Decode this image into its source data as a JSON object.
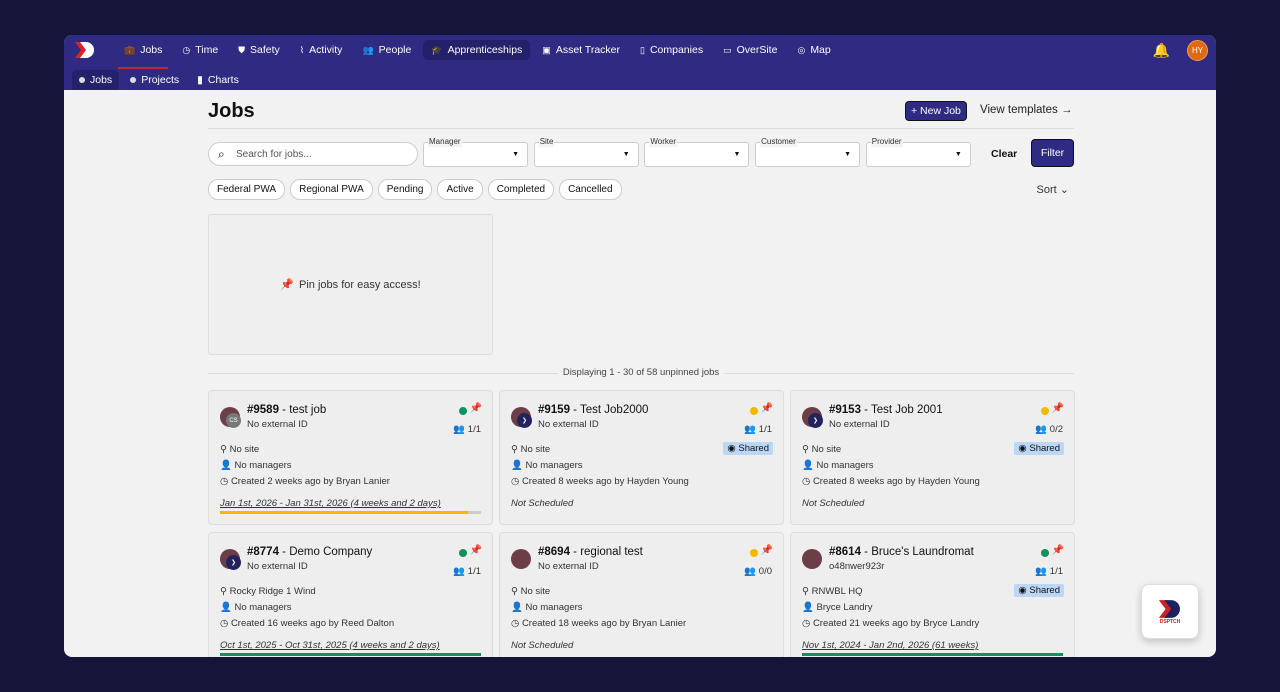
{
  "nav": {
    "items": [
      {
        "label": "Jobs",
        "icon": "briefcase-icon"
      },
      {
        "label": "Time",
        "icon": "clock-icon"
      },
      {
        "label": "Safety",
        "icon": "shield-icon"
      },
      {
        "label": "Activity",
        "icon": "pulse-icon"
      },
      {
        "label": "People",
        "icon": "people-icon"
      },
      {
        "label": "Apprenticeships",
        "icon": "graduation-cap-icon"
      },
      {
        "label": "Asset Tracker",
        "icon": "folder-icon"
      },
      {
        "label": "Companies",
        "icon": "building-icon"
      },
      {
        "label": "OverSite",
        "icon": "map-icon"
      },
      {
        "label": "Map",
        "icon": "globe-icon"
      }
    ],
    "sub": [
      {
        "label": "Jobs"
      },
      {
        "label": "Projects"
      },
      {
        "label": "Charts"
      }
    ],
    "avatar": "HY"
  },
  "page": {
    "title": "Jobs",
    "new_job": "+ New Job",
    "view_templates": "View templates →"
  },
  "filters": {
    "search_placeholder": "Search for jobs...",
    "selects": [
      "Manager",
      "Site",
      "Worker",
      "Customer",
      "Provider"
    ],
    "clear": "Clear",
    "filter": "Filter",
    "chips": [
      "Federal PWA",
      "Regional PWA",
      "Pending",
      "Active",
      "Completed",
      "Cancelled"
    ],
    "sort": "Sort"
  },
  "pin_text": "Pin jobs for easy access!",
  "display_text": "Displaying 1 - 30 of 58 unpinned jobs",
  "colors": {
    "green": "#11925c",
    "yellow": "#f5b800",
    "nav": "#2f2a82"
  },
  "jobs": [
    {
      "num": "#9589",
      "name": " - test job",
      "ext": "No external ID",
      "status": "#11925c",
      "count": "1/1",
      "shared": "",
      "site": "No site",
      "managers": "No managers",
      "created": "Created 2 weeks ago by Bryan Lanier",
      "dates": "Jan 1st, 2026 - Jan 31st, 2026 (4 weeks and 2 days)",
      "progress": 0.95,
      "barcolor": "#f5b800",
      "avatar2": "CS"
    },
    {
      "num": "#9159",
      "name": " - Test Job2000",
      "ext": "No external ID",
      "status": "#f5b800",
      "count": "1/1",
      "shared": "Shared",
      "site": "No site",
      "managers": "No managers",
      "created": "Created 8 weeks ago by Hayden Young",
      "dates": "Not Scheduled",
      "progress": null,
      "avatar2": "D"
    },
    {
      "num": "#9153",
      "name": " - Test Job 2001",
      "ext": "No external ID",
      "status": "#f5b800",
      "count": "0/2",
      "shared": "Shared",
      "site": "No site",
      "managers": "No managers",
      "created": "Created 8 weeks ago by Hayden Young",
      "dates": "Not Scheduled",
      "progress": null,
      "avatar2": "D"
    },
    {
      "num": "#8774",
      "name": " - Demo Company",
      "ext": "No external ID",
      "status": "#11925c",
      "count": "1/1",
      "shared": "",
      "site": "Rocky Ridge 1 Wind",
      "managers": "No managers",
      "created": "Created 16 weeks ago by Reed Dalton",
      "dates": "Oct 1st, 2025 - Oct 31st, 2025 (4 weeks and 2 days)",
      "progress": 1,
      "barcolor": "#11925c",
      "avatar2": "D"
    },
    {
      "num": "#8694",
      "name": " - regional test",
      "ext": "No external ID",
      "status": "#f5b800",
      "count": "0/0",
      "shared": "",
      "site": "No site",
      "managers": "No managers",
      "created": "Created 18 weeks ago by Bryan Lanier",
      "dates": "Not Scheduled",
      "progress": null,
      "avatar2": ""
    },
    {
      "num": "#8614",
      "name": " - Bruce's Laundromat",
      "ext": "o48nwer923r",
      "status": "#11925c",
      "count": "1/1",
      "shared": "Shared",
      "site": "RNWBL HQ",
      "managers": "Bryce Landry",
      "created": "Created 21 weeks ago by Bryce Landry",
      "dates": "Nov 1st, 2024 - Jan 2nd, 2026 (61 weeks)",
      "progress": 1,
      "barcolor": "#11925c",
      "avatar2": ""
    }
  ],
  "fab_logo_text": "DSPTCH"
}
